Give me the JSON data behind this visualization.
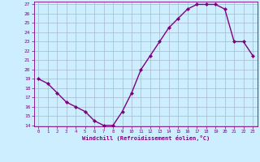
{
  "x": [
    0,
    1,
    2,
    3,
    4,
    5,
    6,
    7,
    8,
    9,
    10,
    11,
    12,
    13,
    14,
    15,
    16,
    17,
    18,
    19,
    20,
    21,
    22,
    23
  ],
  "y": [
    19.0,
    18.5,
    17.5,
    16.5,
    16.0,
    15.5,
    14.5,
    14.0,
    14.0,
    15.5,
    17.5,
    20.0,
    21.5,
    23.0,
    24.5,
    25.5,
    26.5,
    27.0,
    27.0,
    27.0,
    26.5,
    23.0,
    23.0,
    21.5
  ],
  "line_color": "#800080",
  "marker": "D",
  "marker_size": 2.0,
  "background_color": "#cceeff",
  "grid_color": "#aab8cc",
  "xlabel": "Windchill (Refroidissement éolien,°C)",
  "xlabel_color": "#800080",
  "tick_color": "#800080",
  "ylim": [
    14,
    27
  ],
  "yticks": [
    14,
    15,
    16,
    17,
    18,
    19,
    20,
    21,
    22,
    23,
    24,
    25,
    26,
    27
  ],
  "xticks": [
    0,
    1,
    2,
    3,
    4,
    5,
    6,
    7,
    8,
    9,
    10,
    11,
    12,
    13,
    14,
    15,
    16,
    17,
    18,
    19,
    20,
    21,
    22,
    23
  ],
  "spine_color": "#800080",
  "line_width": 1.0
}
